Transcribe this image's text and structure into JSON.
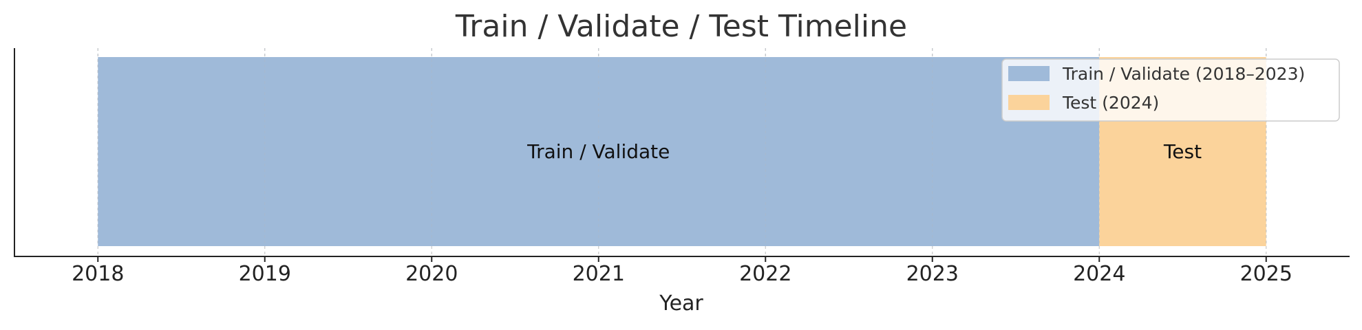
{
  "chart_data": {
    "type": "timeline",
    "title": "Train / Validate / Test Timeline",
    "xlabel": "Year",
    "ylabel": "",
    "xlim": [
      2017.5,
      2025.5
    ],
    "xticks": [
      2018,
      2019,
      2020,
      2021,
      2022,
      2023,
      2024,
      2025
    ],
    "xtick_labels": [
      "2018",
      "2019",
      "2020",
      "2021",
      "2022",
      "2023",
      "2024",
      "2025"
    ],
    "grid": "vertical, dashed",
    "legend_position": "top-right",
    "spans": [
      {
        "name": "Train / Validate (2018–2023)",
        "label": "Train / Validate",
        "start": 2018,
        "end": 2024,
        "color": "#9fbad9"
      },
      {
        "name": "Test (2024)",
        "label": "Test",
        "start": 2024,
        "end": 2025,
        "color": "#fbd39b"
      }
    ]
  }
}
